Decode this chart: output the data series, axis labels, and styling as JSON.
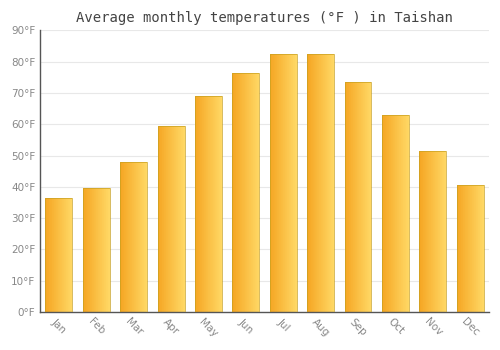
{
  "title": "Average monthly temperatures (°F ) in Taishan",
  "months": [
    "Jan",
    "Feb",
    "Mar",
    "Apr",
    "May",
    "Jun",
    "Jul",
    "Aug",
    "Sep",
    "Oct",
    "Nov",
    "Dec"
  ],
  "values": [
    36.5,
    39.5,
    48,
    59.5,
    69,
    76.5,
    82.5,
    82.5,
    73.5,
    63,
    51.5,
    40.5
  ],
  "bar_color_left": "#F5A623",
  "bar_color_right": "#FFD966",
  "bar_edge_color": "#C8A020",
  "ylim": [
    0,
    90
  ],
  "yticks": [
    0,
    10,
    20,
    30,
    40,
    50,
    60,
    70,
    80,
    90
  ],
  "ytick_labels": [
    "0°F",
    "10°F",
    "20°F",
    "30°F",
    "40°F",
    "50°F",
    "60°F",
    "70°F",
    "80°F",
    "90°F"
  ],
  "background_color": "#ffffff",
  "plot_bg_color": "#ffffff",
  "grid_color": "#e8e8e8",
  "spine_color": "#555555",
  "title_fontsize": 10,
  "tick_fontsize": 7.5,
  "tick_color": "#888888",
  "title_color": "#444444"
}
